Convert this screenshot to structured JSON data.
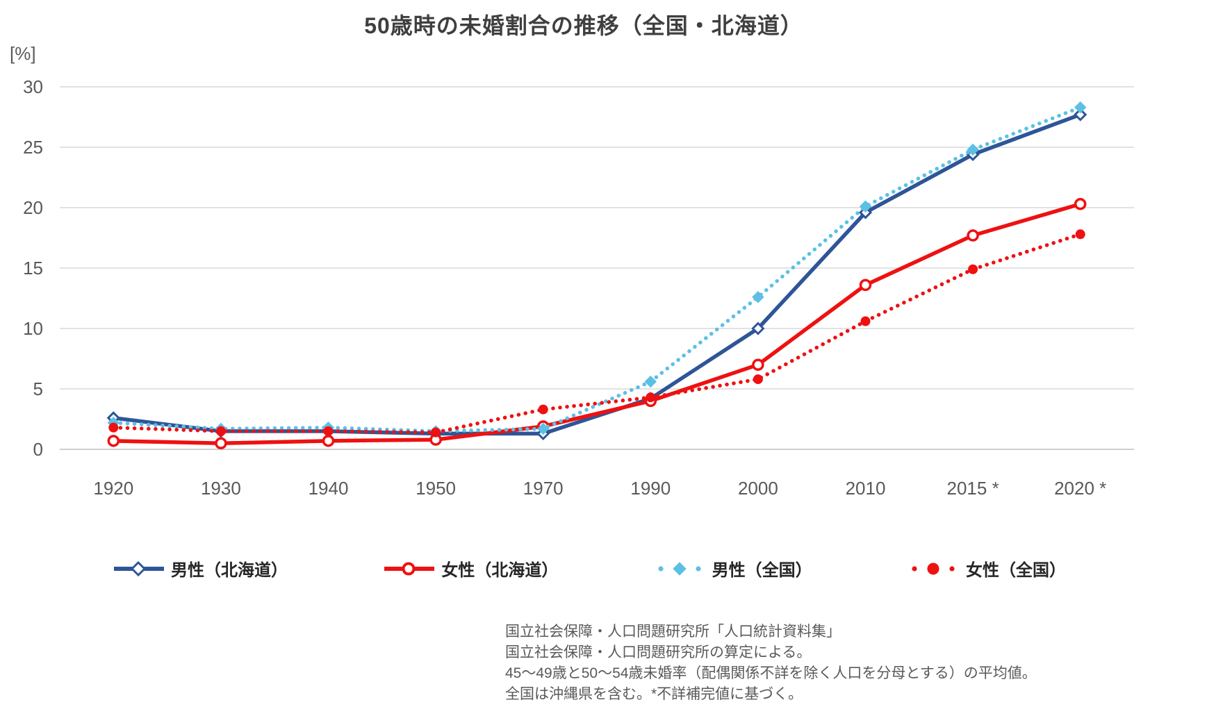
{
  "chart": {
    "title": "50歳時の未婚割合の推移（全国・北海道）",
    "y_unit_label": "[%]"
  },
  "chart_data": {
    "type": "line",
    "title": "50歳時の未婚割合の推移（全国・北海道）",
    "xlabel": "",
    "ylabel": "[%]",
    "ylim": [
      0,
      30
    ],
    "yticks": [
      0,
      5,
      10,
      15,
      20,
      25,
      30
    ],
    "grid": "horizontal",
    "legend_position": "bottom",
    "categories": [
      "1920",
      "1930",
      "1940",
      "1950",
      "1970",
      "1990",
      "2000",
      "2010",
      "2015 *",
      "2020 *"
    ],
    "series": [
      {
        "name": "男性（北海道）",
        "color": "#2E5597",
        "line": "solid",
        "marker": "open-diamond",
        "values": [
          2.6,
          1.5,
          1.5,
          1.3,
          1.3,
          4.2,
          10.0,
          19.6,
          24.4,
          27.7
        ]
      },
      {
        "name": "女性（北海道）",
        "color": "#EE1111",
        "line": "solid",
        "marker": "open-circle",
        "values": [
          0.7,
          0.5,
          0.7,
          0.8,
          1.9,
          4.0,
          7.0,
          13.6,
          17.7,
          20.3
        ]
      },
      {
        "name": "男性（全国）",
        "color": "#5BC0E4",
        "line": "dotted",
        "marker": "filled-diamond",
        "values": [
          2.2,
          1.7,
          1.8,
          1.5,
          1.7,
          5.6,
          12.6,
          20.1,
          24.8,
          28.3
        ]
      },
      {
        "name": "女性（全国）",
        "color": "#EE1111",
        "line": "dotted",
        "marker": "filled-circle",
        "values": [
          1.8,
          1.5,
          1.5,
          1.4,
          3.3,
          4.3,
          5.8,
          10.6,
          14.9,
          17.8
        ]
      }
    ]
  },
  "notes": [
    "国立社会保障・人口問題研究所「人口統計資料集」",
    "国立社会保障・人口問題研究所の算定による。",
    "45～49歳と50～54歳未婚率（配偶関係不詳を除く人口を分母とする）の平均値。",
    "全国は沖縄県を含む。*不詳補完値に基づく。"
  ],
  "colors": {
    "title_text": "#3F3F3F",
    "axis_text": "#595959",
    "gridline": "#D9D9D9",
    "axis_line": "#BFBFBF",
    "navy": "#2E5597",
    "red": "#EE1111",
    "light_blue": "#5BC0E4",
    "background": "#FFFFFF"
  }
}
